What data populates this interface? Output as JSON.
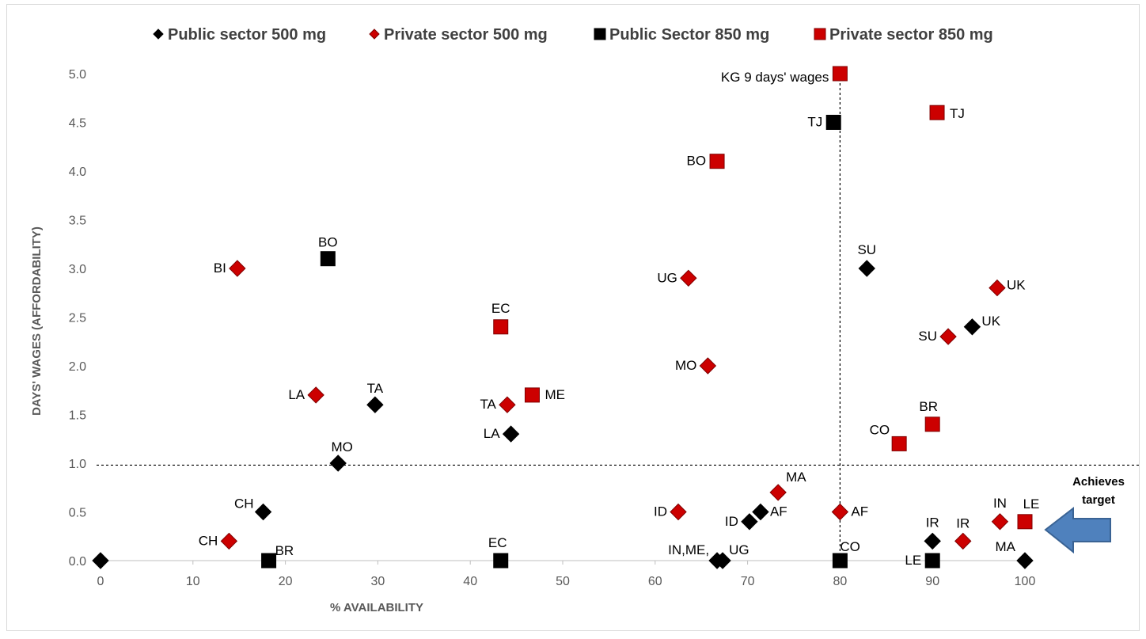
{
  "chart_data": {
    "type": "scatter",
    "xlabel": "% AVAILABILITY",
    "ylabel": "DAYS' WAGES (AFFORDABILITY)",
    "xlim": [
      0,
      100
    ],
    "ylim": [
      0,
      5
    ],
    "x_ticks": [
      "0",
      "10",
      "20",
      "30",
      "40",
      "50",
      "60",
      "70",
      "80",
      "90",
      "100"
    ],
    "y_ticks": [
      "0.0",
      "0.5",
      "1.0",
      "1.5",
      "2.0",
      "2.5",
      "3.0",
      "3.5",
      "4.0",
      "4.5",
      "5.0"
    ],
    "legend_position": "top",
    "grid": false,
    "reference_lines": {
      "horizontal_y": 0.98,
      "vertical_x": 80
    },
    "annotation": "Achieves target",
    "colors": {
      "black": "#000000",
      "red": "#cc0000",
      "red_border": "#7f0000",
      "arrow": "#4f81bd"
    },
    "series": [
      {
        "name": "Public sector 500 mg",
        "marker": "diamond",
        "color": "#000000",
        "points": [
          {
            "x": 0,
            "y": 0.0,
            "label": ""
          },
          {
            "x": 17.6,
            "y": 0.5,
            "label": "CH"
          },
          {
            "x": 25.7,
            "y": 1.0,
            "label": "MO"
          },
          {
            "x": 29.7,
            "y": 1.6,
            "label": "TA"
          },
          {
            "x": 44.4,
            "y": 1.3,
            "label": "LA"
          },
          {
            "x": 66.7,
            "y": 0.0,
            "label": "IN,ME,"
          },
          {
            "x": 67.3,
            "y": 0.0,
            "label": "UG"
          },
          {
            "x": 70.2,
            "y": 0.4,
            "label": "ID"
          },
          {
            "x": 71.4,
            "y": 0.5,
            "label": "AF"
          },
          {
            "x": 82.9,
            "y": 3.0,
            "label": "SU"
          },
          {
            "x": 90.0,
            "y": 0.2,
            "label": "IR"
          },
          {
            "x": 94.3,
            "y": 2.4,
            "label": "UK"
          },
          {
            "x": 100,
            "y": 0.0,
            "label": "MA"
          }
        ]
      },
      {
        "name": "Private sector 500 mg",
        "marker": "diamond",
        "color": "#cc0000",
        "points": [
          {
            "x": 13.9,
            "y": 0.2,
            "label": "CH"
          },
          {
            "x": 14.8,
            "y": 3.0,
            "label": "BI"
          },
          {
            "x": 23.3,
            "y": 1.7,
            "label": "LA"
          },
          {
            "x": 44.0,
            "y": 1.6,
            "label": "TA"
          },
          {
            "x": 62.5,
            "y": 0.5,
            "label": "ID"
          },
          {
            "x": 63.6,
            "y": 2.9,
            "label": "UG"
          },
          {
            "x": 65.7,
            "y": 2.0,
            "label": "MO"
          },
          {
            "x": 73.3,
            "y": 0.7,
            "label": "MA"
          },
          {
            "x": 80.0,
            "y": 0.5,
            "label": "AF"
          },
          {
            "x": 91.7,
            "y": 2.3,
            "label": "SU"
          },
          {
            "x": 93.3,
            "y": 0.2,
            "label": "IR"
          },
          {
            "x": 97.0,
            "y": 2.8,
            "label": "UK"
          },
          {
            "x": 97.3,
            "y": 0.4,
            "label": "IN"
          }
        ]
      },
      {
        "name": "Public Sector 850 mg",
        "marker": "square",
        "color": "#000000",
        "points": [
          {
            "x": 18.2,
            "y": 0.0,
            "label": "BR"
          },
          {
            "x": 24.6,
            "y": 3.1,
            "label": "BO"
          },
          {
            "x": 43.3,
            "y": 0.0,
            "label": "EC"
          },
          {
            "x": 79.3,
            "y": 4.5,
            "label": "TJ"
          },
          {
            "x": 80.0,
            "y": 0.0,
            "label": "CO"
          },
          {
            "x": 90.0,
            "y": 0.0,
            "label": "LE"
          }
        ]
      },
      {
        "name": "Private sector 850 mg",
        "marker": "square",
        "color": "#cc0000",
        "points": [
          {
            "x": 43.3,
            "y": 2.4,
            "label": "EC"
          },
          {
            "x": 46.7,
            "y": 1.7,
            "label": "ME"
          },
          {
            "x": 66.7,
            "y": 4.1,
            "label": "BO"
          },
          {
            "x": 80.0,
            "y": 5.0,
            "label": "KG 9 days' wages"
          },
          {
            "x": 86.4,
            "y": 1.2,
            "label": "CO"
          },
          {
            "x": 90.0,
            "y": 1.4,
            "label": "BR"
          },
          {
            "x": 90.5,
            "y": 4.6,
            "label": "TJ"
          },
          {
            "x": 100,
            "y": 0.4,
            "label": "LE"
          }
        ]
      }
    ]
  }
}
